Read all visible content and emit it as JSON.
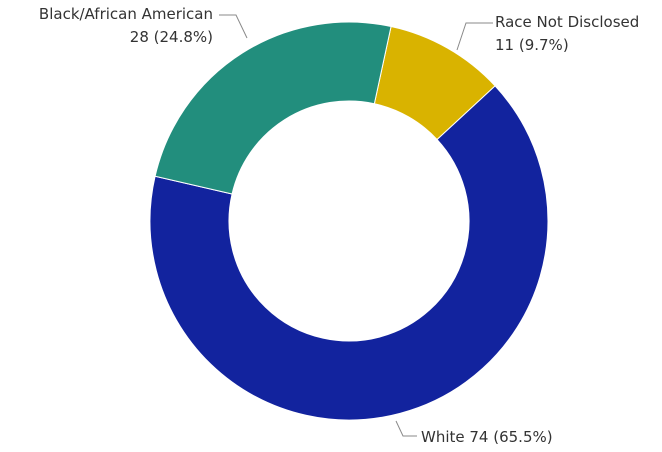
{
  "chart_data": {
    "type": "pie",
    "variant": "donut",
    "categories": [
      "Race Not Disclosed",
      "White",
      "Black/African American"
    ],
    "values": [
      11,
      74,
      28
    ],
    "percents": [
      "9.7%",
      "65.5%",
      "24.8%"
    ],
    "colors": [
      "#D9B300",
      "#12239E",
      "#228E7D"
    ],
    "labels": {
      "not_disclosed_name": "Race Not Disclosed",
      "not_disclosed_value": "11 (9.7%)",
      "white": "White 74 (65.5%)",
      "black_name": "Black/African American",
      "black_value": "28 (24.8%)"
    },
    "start_angle_deg": 12.2,
    "legend": "none"
  }
}
